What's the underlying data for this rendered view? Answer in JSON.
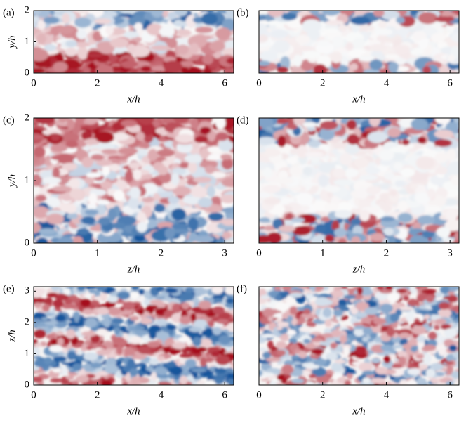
{
  "chart_data": [
    {
      "type": "heatmap",
      "panel": "(a)",
      "xlabel": "x/h",
      "ylabel": "y/h",
      "xlim": [
        0,
        6.283
      ],
      "xticks": [
        0,
        2,
        4,
        6
      ],
      "ylim": [
        0,
        2
      ],
      "yticks": [
        0,
        1,
        2
      ]
    },
    {
      "type": "heatmap",
      "panel": "(b)",
      "xlabel": "x/h",
      "xlim": [
        0,
        6.283
      ],
      "xticks": [
        0,
        2,
        4,
        6
      ],
      "ylim": [
        0,
        2
      ]
    },
    {
      "type": "heatmap",
      "panel": "(c)",
      "xlabel": "z/h",
      "ylabel": "y/h",
      "xlim": [
        0,
        3.1416
      ],
      "xticks": [
        0,
        1,
        2,
        3
      ],
      "ylim": [
        0,
        2
      ],
      "yticks": [
        0,
        1,
        2
      ]
    },
    {
      "type": "heatmap",
      "panel": "(d)",
      "xlabel": "z/h",
      "xlim": [
        0,
        3.1416
      ],
      "xticks": [
        0,
        1,
        2,
        3
      ],
      "ylim": [
        0,
        2
      ]
    },
    {
      "type": "heatmap",
      "panel": "(e)",
      "xlabel": "x/h",
      "ylabel": "z/h",
      "xlim": [
        0,
        6.283
      ],
      "xticks": [
        0,
        2,
        4,
        6
      ],
      "ylim": [
        0,
        3.1416
      ],
      "yticks": [
        0,
        1,
        2,
        3
      ]
    },
    {
      "type": "heatmap",
      "panel": "(f)",
      "xlabel": "x/h",
      "xlim": [
        0,
        6.283
      ],
      "xticks": [
        0,
        2,
        4,
        6
      ],
      "ylim": [
        0,
        3.1416
      ]
    }
  ]
}
